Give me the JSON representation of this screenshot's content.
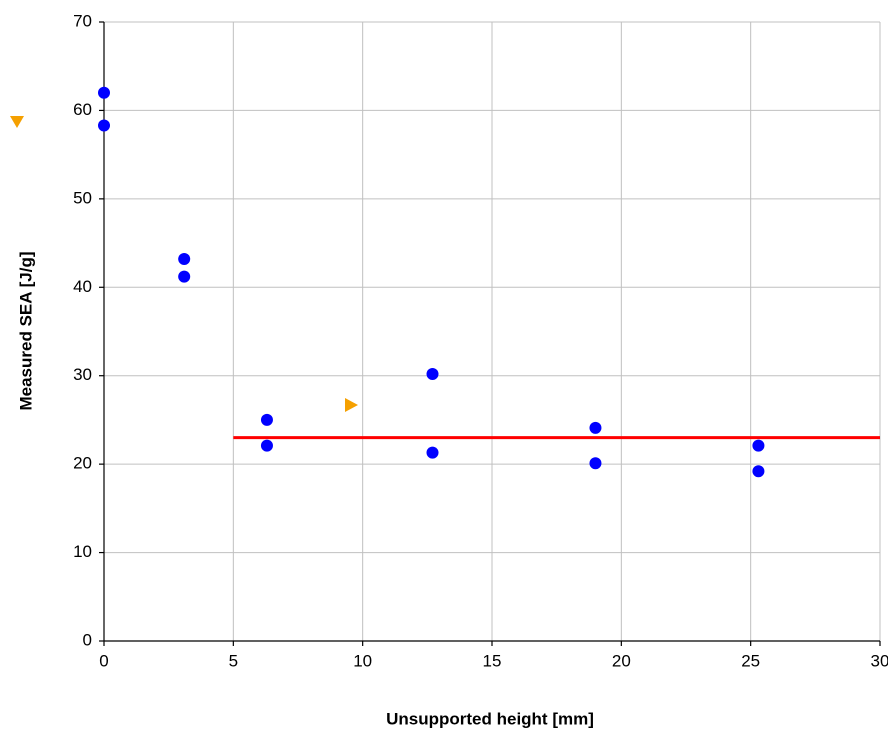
{
  "chart_data": {
    "type": "scatter",
    "xlabel": "Unsupported height [mm]",
    "ylabel": "Measured SEA [J/g]",
    "x": [
      0,
      0,
      3.1,
      3.1,
      6.3,
      6.3,
      12.7,
      12.7,
      19,
      19,
      25.3,
      25.3
    ],
    "values": [
      62,
      58.3,
      43.2,
      41.2,
      25,
      22.1,
      30.2,
      21.3,
      24.1,
      20.1,
      22.1,
      19.2
    ],
    "color": "#0000ff",
    "reference_line": {
      "x": [
        5,
        30
      ],
      "values": [
        23,
        23
      ],
      "color": "#ff0000"
    },
    "xlim": [
      0,
      30
    ],
    "xticks": [
      0,
      5,
      10,
      15,
      20,
      25,
      30
    ],
    "ylim": [
      0,
      70
    ],
    "yticks": [
      0,
      10,
      20,
      30,
      40,
      50,
      60,
      70
    ],
    "grid": true
  }
}
